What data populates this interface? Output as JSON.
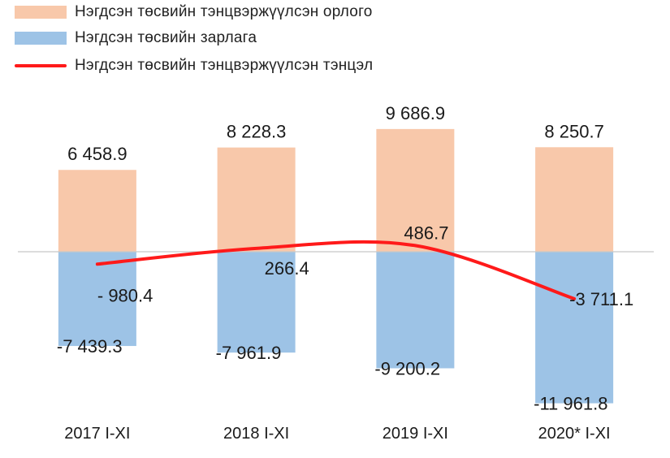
{
  "chart_data": {
    "type": "bar",
    "categories": [
      "2017 I-XI",
      "2018 I-XI",
      "2019 I-XI",
      "2020* I-XI"
    ],
    "series": [
      {
        "name": "Нэгдсэн төсвийн тэнцвэржүүлсэн орлого",
        "kind": "bar",
        "color": "#f8c8aa",
        "values": [
          6458.9,
          8228.3,
          9686.9,
          8250.7
        ],
        "labels": [
          "6 458.9",
          "8 228.3",
          "9 686.9",
          "8 250.7"
        ]
      },
      {
        "name": "Нэгдсэн төсвийн зарлага",
        "kind": "bar",
        "color": "#9dc3e6",
        "values": [
          -7439.3,
          -7961.9,
          -9200.2,
          -11961.8
        ],
        "labels": [
          "-7 439.3",
          "-7 961.9",
          "-9 200.2",
          "-11 961.8"
        ]
      },
      {
        "name": "Нэгдсэн төсвийн тэнцвэржүүлсэн тэнцэл",
        "kind": "line",
        "color": "#ff1a1a",
        "values": [
          -980.4,
          266.4,
          486.7,
          -3711.1
        ],
        "labels": [
          "- 980.4",
          "266.4",
          "486.7",
          "-3 711.1"
        ]
      }
    ],
    "ylim": [
      -13000,
      12500
    ],
    "grid": false,
    "legend_position": "top-left",
    "xlabel": "",
    "ylabel": ""
  }
}
